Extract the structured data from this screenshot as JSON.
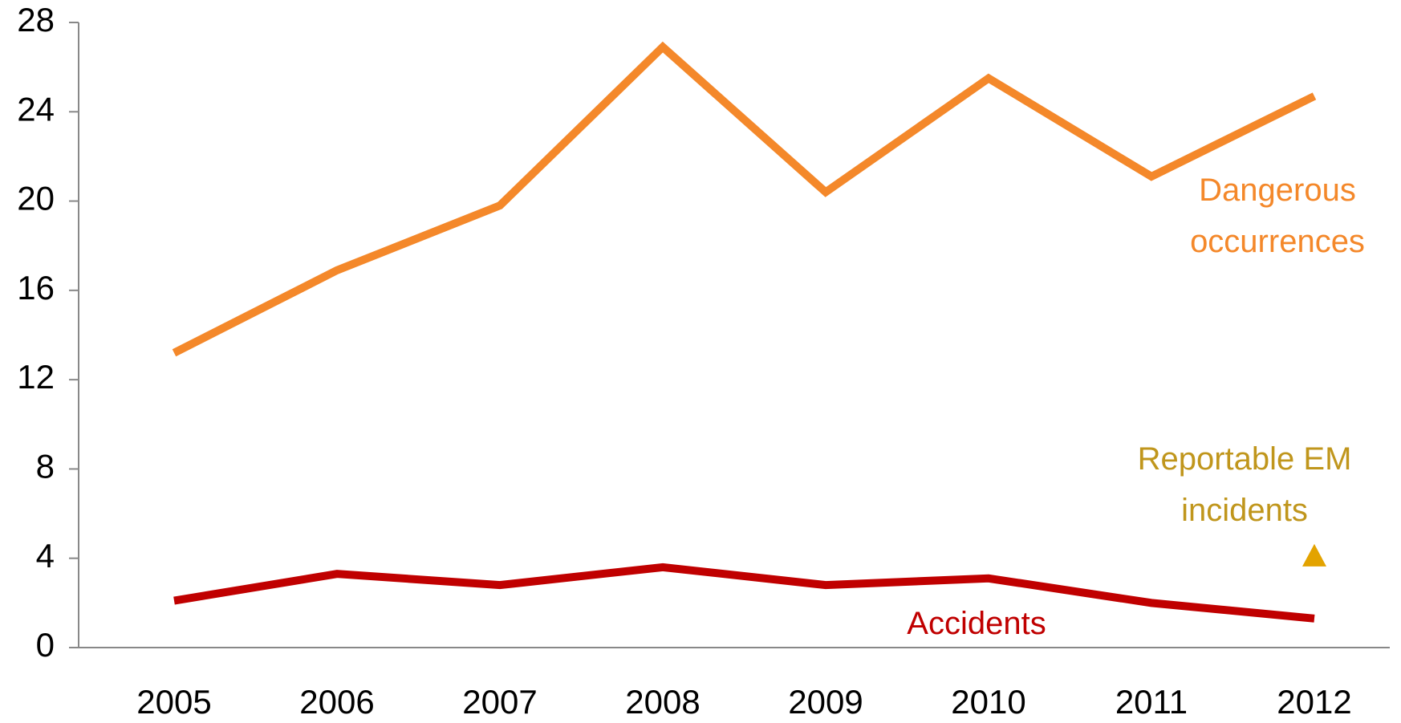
{
  "chart_data": {
    "type": "line",
    "categories": [
      "2005",
      "2006",
      "2007",
      "2008",
      "2009",
      "2010",
      "2011",
      "2012"
    ],
    "series": [
      {
        "name": "Dangerous occurrences",
        "color": "#f4882a",
        "values": [
          13.2,
          16.9,
          19.8,
          26.9,
          20.4,
          25.5,
          21.1,
          24.7
        ]
      },
      {
        "name": "Accidents",
        "color": "#c00000",
        "values": [
          2.1,
          3.3,
          2.8,
          3.6,
          2.8,
          3.1,
          2.0,
          1.3
        ]
      },
      {
        "name": "Reportable EM incidents",
        "color": "#e3a300",
        "marker": "triangle",
        "values": [
          null,
          null,
          null,
          null,
          null,
          null,
          null,
          4.1
        ]
      }
    ],
    "ylim": [
      0,
      28
    ],
    "yticks": [
      0,
      4,
      8,
      12,
      16,
      20,
      24,
      28
    ],
    "grid": false
  }
}
